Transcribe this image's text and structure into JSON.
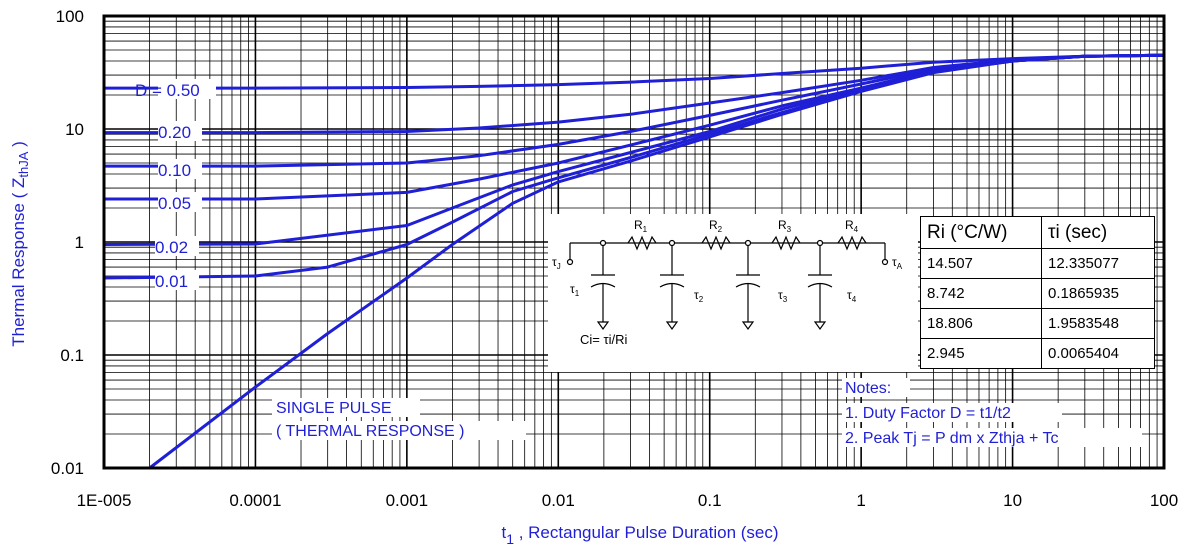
{
  "chart_data": {
    "type": "line",
    "scale": {
      "x": "log",
      "y": "log"
    },
    "xlabel": "t",
    "xlabel_sub": "1",
    "xlabel_rest": " , Rectangular Pulse Duration (sec)",
    "ylabel": "Thermal Response ( Z",
    "ylabel_sub": "thJA",
    "ylabel_end": " )",
    "xlim": [
      1e-05,
      100
    ],
    "ylim": [
      0.01,
      100
    ],
    "x_tick_labels": [
      "1E-005",
      "0.0001",
      "0.001",
      "0.01",
      "0.1",
      "1",
      "10",
      "100"
    ],
    "y_tick_labels": [
      "100",
      "10",
      "1",
      "0.1",
      "0.01"
    ],
    "grid": true,
    "line_color": "#1f1fd6",
    "series": [
      {
        "name": "D = 0.50",
        "x": [
          1e-05,
          0.0001,
          0.001,
          0.003,
          0.01,
          0.03,
          0.1,
          0.3,
          1,
          3,
          10,
          30,
          100
        ],
        "y": [
          23,
          23,
          23.3,
          23.8,
          24.7,
          26,
          28,
          31,
          34.5,
          39,
          42,
          44,
          45
        ]
      },
      {
        "name": "0.20",
        "x": [
          1e-05,
          0.0001,
          0.001,
          0.003,
          0.01,
          0.03,
          0.1,
          0.3,
          1,
          3,
          10,
          30,
          100
        ],
        "y": [
          9.3,
          9.3,
          9.5,
          10.2,
          11.5,
          13.5,
          17,
          21,
          27,
          35,
          41,
          44,
          45
        ]
      },
      {
        "name": "0.10",
        "x": [
          1e-05,
          0.0001,
          0.001,
          0.003,
          0.01,
          0.03,
          0.1,
          0.3,
          1,
          3,
          10,
          30,
          100
        ],
        "y": [
          4.7,
          4.7,
          5,
          5.8,
          7.3,
          9.5,
          13.2,
          18,
          25,
          34,
          41,
          44,
          45
        ]
      },
      {
        "name": "0.05",
        "x": [
          1e-05,
          0.0001,
          0.001,
          0.003,
          0.01,
          0.03,
          0.1,
          0.3,
          1,
          3,
          10,
          30,
          100
        ],
        "y": [
          2.4,
          2.4,
          2.75,
          3.6,
          5,
          7.2,
          10.8,
          16,
          23,
          33,
          40,
          44,
          45
        ]
      },
      {
        "name": "0.02",
        "x": [
          1e-05,
          0.0001,
          0.001,
          0.002,
          0.005,
          0.01,
          0.03,
          0.1,
          0.3,
          1,
          3,
          10,
          30,
          100
        ],
        "y": [
          0.95,
          0.96,
          1.4,
          2,
          3.2,
          4.2,
          6.2,
          9.5,
          15,
          22.5,
          32.5,
          40,
          44,
          45
        ]
      },
      {
        "name": "0.01",
        "x": [
          1e-05,
          0.0001,
          0.0003,
          0.001,
          0.002,
          0.005,
          0.01,
          0.03,
          0.1,
          0.3,
          1,
          3,
          10,
          30,
          100
        ],
        "y": [
          0.48,
          0.5,
          0.6,
          0.95,
          1.5,
          2.8,
          3.7,
          5.6,
          9,
          14,
          22,
          32,
          40,
          44,
          45
        ]
      },
      {
        "name": "SINGLE PULSE",
        "x": [
          2e-05,
          0.0001,
          0.0003,
          0.001,
          0.002,
          0.005,
          0.01,
          0.03,
          0.1,
          0.3,
          1,
          3,
          10,
          30,
          100
        ],
        "y": [
          0.01,
          0.052,
          0.155,
          0.48,
          0.95,
          2.2,
          3.4,
          5.2,
          8.5,
          13.5,
          21.5,
          31.5,
          40,
          44,
          45
        ]
      }
    ],
    "series_labels": [
      "D = 0.50",
      "0.20",
      "0.10",
      "0.05",
      "0.02",
      "0.01"
    ],
    "annotations": {
      "single_pulse": [
        "SINGLE PULSE",
        "( THERMAL RESPONSE )"
      ],
      "notes": [
        "Notes:",
        "1. Duty Factor D = t1/t2",
        "2. Peak Tj = P dm x Zthja + Tc"
      ]
    }
  },
  "circuit": {
    "resistors": [
      "R",
      "R",
      "R",
      "R"
    ],
    "resistor_subs": [
      "1",
      "2",
      "3",
      "4"
    ],
    "taus": [
      "τ",
      "τ",
      "τ",
      "τ"
    ],
    "tau_subs": [
      "1",
      "2",
      "3",
      "4"
    ],
    "node_start": "τ",
    "node_start_sub": "J",
    "node_end": "τ",
    "node_end_sub": "A",
    "cap_formula": "Ci= τi/Ri"
  },
  "rc_table": {
    "headers": [
      "Ri (°C/W)",
      "τi (sec)"
    ],
    "rows": [
      [
        "14.507",
        "12.335077"
      ],
      [
        "8.742",
        "0.1865935"
      ],
      [
        "18.806",
        "1.9583548"
      ],
      [
        "2.945",
        "0.0065404"
      ]
    ]
  }
}
